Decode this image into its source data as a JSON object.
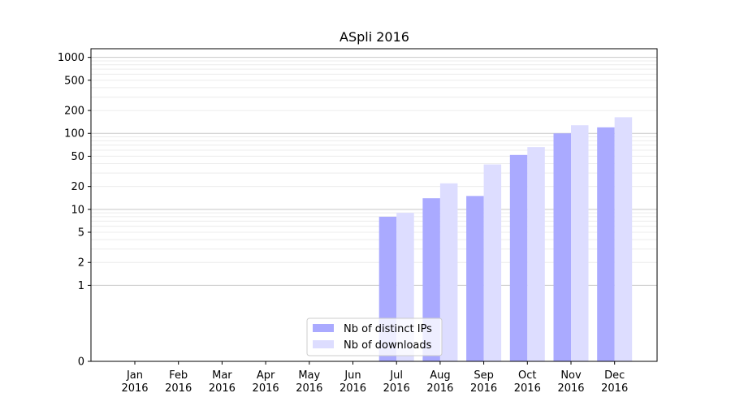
{
  "chart_data": {
    "type": "bar",
    "title": "ASpli 2016",
    "xlabel": "",
    "ylabel": "",
    "categories": [
      [
        "Jan",
        "2016"
      ],
      [
        "Feb",
        "2016"
      ],
      [
        "Mar",
        "2016"
      ],
      [
        "Apr",
        "2016"
      ],
      [
        "May",
        "2016"
      ],
      [
        "Jun",
        "2016"
      ],
      [
        "Jul",
        "2016"
      ],
      [
        "Aug",
        "2016"
      ],
      [
        "Sep",
        "2016"
      ],
      [
        "Oct",
        "2016"
      ],
      [
        "Nov",
        "2016"
      ],
      [
        "Dec",
        "2016"
      ]
    ],
    "series": [
      {
        "name": "Nb of distinct IPs",
        "color": "#aaaaff",
        "values": [
          0,
          0,
          0,
          0,
          0,
          0,
          8,
          14,
          15,
          52,
          100,
          120
        ]
      },
      {
        "name": "Nb of downloads",
        "color": "#ddddff",
        "values": [
          0,
          0,
          0,
          0,
          0,
          0,
          9,
          22,
          39,
          66,
          128,
          163
        ]
      }
    ],
    "y_scale": "symlog",
    "ylim": [
      0,
      1300
    ],
    "y_ticks": [
      0,
      1,
      2,
      5,
      10,
      20,
      50,
      100,
      200,
      500,
      1000
    ],
    "y_tick_labels": [
      "0",
      "1",
      "2",
      "5",
      "10",
      "20",
      "50",
      "100",
      "200",
      "500",
      "1000"
    ],
    "grid": "horizontal",
    "legend_position": "lower-center"
  }
}
